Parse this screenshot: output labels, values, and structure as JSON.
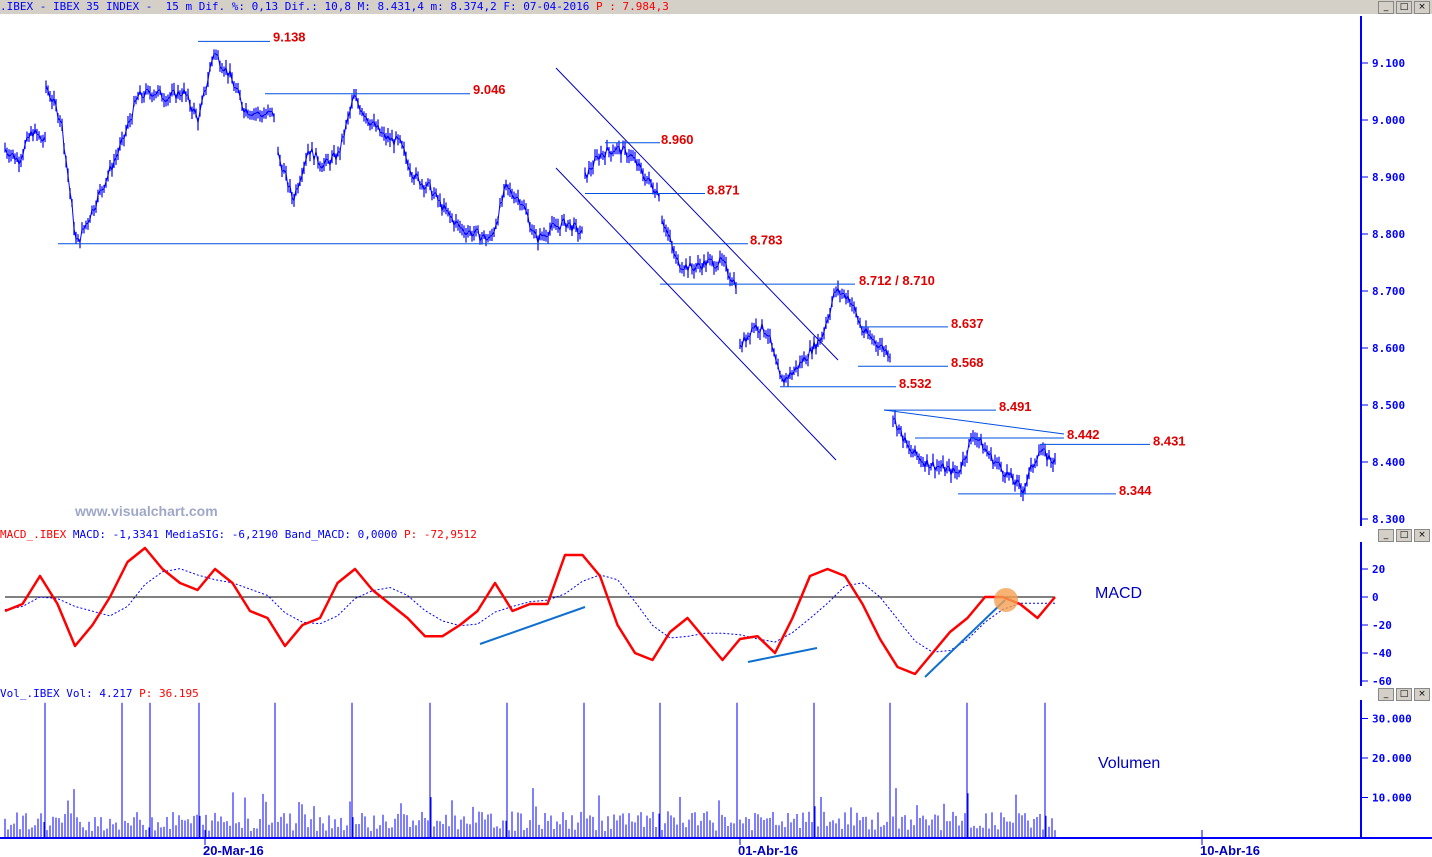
{
  "header": {
    "symbol": ".IBEX - IBEX 35 INDEX -",
    "info": "15 m Dif. %: 0,13 Dif.: 10,8 M: 8.431,4 m: 8.374,2 F: 07-04-2016",
    "last": "P : 7.984,3"
  },
  "macd_header": {
    "name": "MACD_.IBEX",
    "values": "MACD: -1,3341 MediaSIG: -6,2190 Band_MACD: 0,0000",
    "last": "P: -72,9512"
  },
  "vol_header": {
    "name": "Vol_.IBEX",
    "values": "Vol: 4.217",
    "last": "P: 36.195"
  },
  "watermark": "www.visualchart.com",
  "window_buttons": [
    "_",
    "□",
    "×"
  ],
  "colors": {
    "price": "#0000ff",
    "macd": "#ff0000",
    "signal": "#0000ff",
    "levels": "#e00000",
    "trendline": "#1070d0",
    "cross_marker": "#f5a050"
  },
  "chart_data": [
    {
      "type": "line",
      "ylim": [
        8250,
        9200
      ],
      "yticks": [
        "9.100",
        "9.000",
        "8.900",
        "8.800",
        "8.700",
        "8.600",
        "8.500",
        "8.400",
        "8.300"
      ],
      "xticks": [
        "20-Mar-16",
        "01-Abr-16",
        "10-Abr-16"
      ],
      "levels": [
        {
          "label": "9.138",
          "value": 9138
        },
        {
          "label": "9.046",
          "value": 9046
        },
        {
          "label": "8.960",
          "value": 8960
        },
        {
          "label": "8.871",
          "value": 8871
        },
        {
          "label": "8.783",
          "value": 8783
        },
        {
          "label": "8.712 / 8.710",
          "value": 8712
        },
        {
          "label": "8.637",
          "value": 8637
        },
        {
          "label": "8.568",
          "value": 8568
        },
        {
          "label": "8.532",
          "value": 8532
        },
        {
          "label": "8.491",
          "value": 8491
        },
        {
          "label": "8.442",
          "value": 8442
        },
        {
          "label": "8.431",
          "value": 8431
        },
        {
          "label": "8.344",
          "value": 8344
        }
      ],
      "sessions": [
        [
          8950,
          8930,
          8980,
          8960
        ],
        [
          9060,
          9000,
          8780,
          8840,
          8900,
          8960,
          9040,
          9050,
          9040,
          9050,
          9000,
          9120,
          9080,
          9020,
          9010,
          9010
        ],
        [
          8940,
          8860,
          8950,
          8920,
          8940,
          9040,
          9000,
          8970,
          8960,
          8900,
          8880,
          8840,
          8810,
          8800,
          8790,
          8880,
          8860,
          8790,
          8810,
          8820,
          8800
        ],
        [
          8900,
          8940,
          8950,
          8940,
          8900,
          8870
        ],
        [
          8830,
          8750,
          8740,
          8750,
          8750,
          8710
        ],
        [
          8600,
          8640,
          8630,
          8540,
          8560,
          8590,
          8620,
          8700,
          8690,
          8630,
          8610,
          8590
        ],
        [
          8480,
          8420,
          8400,
          8390,
          8380,
          8450,
          8410,
          8380,
          8350,
          8420,
          8400
        ]
      ]
    },
    {
      "type": "line",
      "title": "MACD",
      "ylim": [
        -65,
        25
      ],
      "yticks": [
        "20",
        "0",
        "-20",
        "-40",
        "-60"
      ],
      "macd": [
        -10,
        -5,
        15,
        -5,
        -35,
        -20,
        0,
        25,
        35,
        20,
        10,
        5,
        20,
        10,
        -10,
        -15,
        -35,
        -20,
        -15,
        10,
        20,
        5,
        -5,
        -15,
        -28,
        -28,
        -20,
        -10,
        10,
        -10,
        -5,
        -5,
        30,
        30,
        15,
        -20,
        -40,
        -45,
        -25,
        -15,
        -30,
        -45,
        -30,
        -28,
        -40,
        -15,
        15,
        20,
        15,
        -5,
        -30,
        -50,
        -55,
        -40,
        -25,
        -15,
        0,
        0,
        -5,
        -15,
        0
      ]
    },
    {
      "type": "bar",
      "title": "Volumen",
      "ylim": [
        0,
        35000
      ],
      "yticks": [
        "30.000",
        "20.000",
        "10.000"
      ],
      "session_open_volume": 34000
    }
  ]
}
